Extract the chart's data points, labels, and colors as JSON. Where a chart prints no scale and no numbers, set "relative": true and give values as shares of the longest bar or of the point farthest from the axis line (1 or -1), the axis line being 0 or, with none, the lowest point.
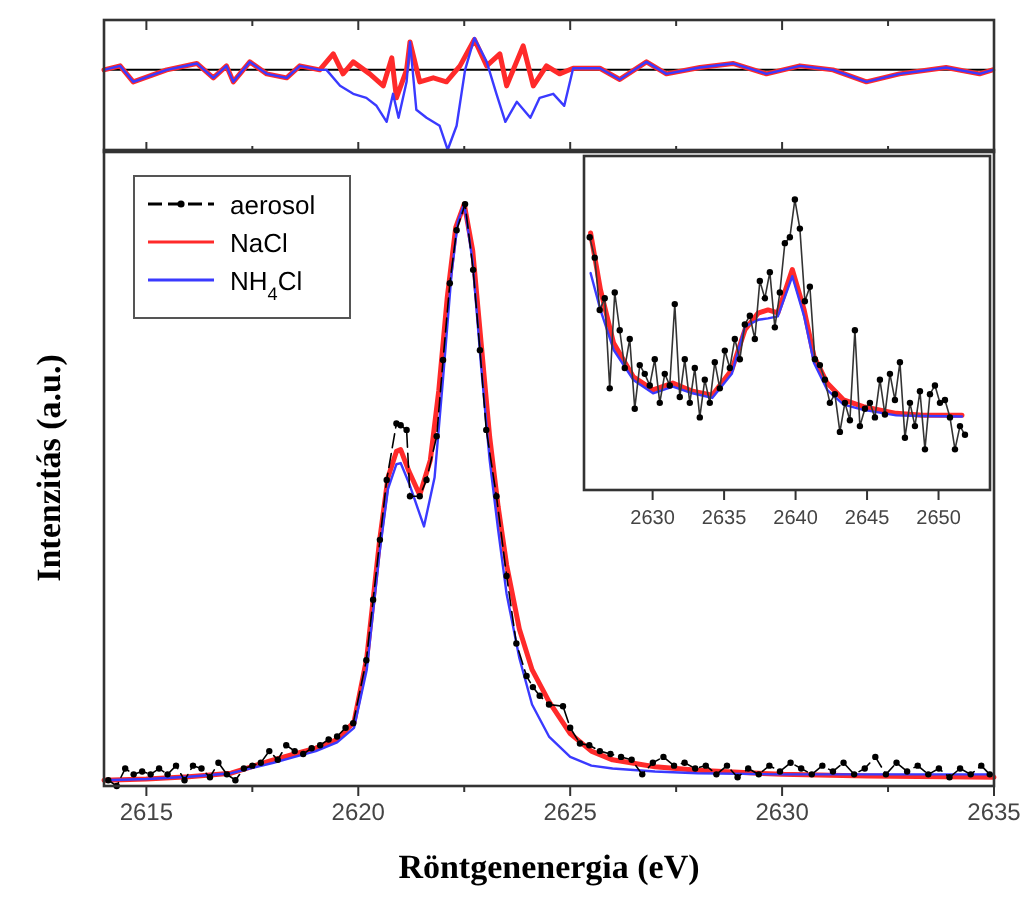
{
  "chart_data": [
    {
      "type": "line",
      "relative": true,
      "xlim": [
        2614,
        2635
      ],
      "xticks": [
        2615,
        {
          "value": 2617.5,
          "label": null
        },
        2620,
        {
          "value": 2622.5,
          "label": null
        },
        2625,
        {
          "value": 2627.5,
          "label": null
        },
        2630,
        {
          "value": 2632.5,
          "label": null
        },
        2635
      ],
      "tick_labels": false,
      "ref_lines": [
        {
          "axis": "y",
          "value": 0,
          "color": "#000000"
        }
      ],
      "series": [
        {
          "color": "#ff2a2a",
          "x": [
            2614.0,
            2614.38,
            2614.69,
            2615.48,
            2616.19,
            2616.58,
            2616.89,
            2617.05,
            2617.44,
            2617.84,
            2618.31,
            2618.62,
            2619.09,
            2619.41,
            2619.64,
            2619.88,
            2620.27,
            2620.59,
            2620.79,
            2620.9,
            2621.14,
            2621.22,
            2621.45,
            2621.77,
            2622.08,
            2622.4,
            2622.74,
            2623.03,
            2623.34,
            2623.5,
            2623.89,
            2624.13,
            2624.44,
            2624.75,
            2625.07,
            2625.7,
            2626.17,
            2626.8,
            2627.27,
            2628.06,
            2628.84,
            2629.63,
            2630.42,
            2631.2,
            2631.99,
            2632.77,
            2633.87,
            2634.66,
            2634.97
          ],
          "values": [
            0,
            0.05,
            -0.15,
            0,
            0.08,
            -0.1,
            0.05,
            -0.15,
            0.1,
            -0.05,
            -0.1,
            0.05,
            0,
            0.2,
            -0.05,
            0.1,
            -0.05,
            -0.2,
            0.15,
            -0.35,
            0,
            0.35,
            -0.15,
            -0.1,
            -0.15,
            0.05,
            0.38,
            0.05,
            0.2,
            -0.2,
            0.3,
            -0.2,
            0.05,
            -0.05,
            0.02,
            0.02,
            -0.12,
            0.1,
            -0.05,
            0.03,
            0.08,
            -0.05,
            0.05,
            0,
            -0.15,
            -0.05,
            0.03,
            -0.05,
            0
          ]
        },
        {
          "color": "#3a3aff",
          "x": [
            2614.0,
            2614.38,
            2614.69,
            2615.48,
            2616.19,
            2616.58,
            2616.89,
            2617.05,
            2617.44,
            2617.84,
            2618.31,
            2618.62,
            2619.09,
            2619.25,
            2619.57,
            2619.88,
            2620.19,
            2620.43,
            2620.67,
            2620.82,
            2620.95,
            2621.14,
            2621.22,
            2621.37,
            2621.61,
            2621.92,
            2622.11,
            2622.32,
            2622.52,
            2622.74,
            2623.03,
            2623.26,
            2623.47,
            2623.74,
            2624.06,
            2624.28,
            2624.6,
            2624.86,
            2625.07,
            2625.7,
            2626.17,
            2626.8,
            2627.27,
            2628.06,
            2628.84,
            2629.63,
            2630.42,
            2631.2,
            2631.99,
            2632.77,
            2633.87,
            2634.66,
            2634.97
          ],
          "values": [
            0,
            0.05,
            -0.15,
            0,
            0.08,
            -0.1,
            0.05,
            -0.15,
            0.1,
            -0.05,
            -0.1,
            0.05,
            0,
            0,
            -0.2,
            -0.3,
            -0.35,
            -0.45,
            -0.65,
            -0.3,
            -0.6,
            -0.15,
            0.35,
            -0.5,
            -0.6,
            -0.7,
            -1.0,
            -0.7,
            0,
            0.4,
            0.1,
            -0.3,
            -0.65,
            -0.4,
            -0.6,
            -0.35,
            -0.3,
            -0.45,
            0.02,
            0.02,
            -0.12,
            0.1,
            -0.05,
            0.03,
            0.08,
            -0.05,
            0.05,
            0,
            -0.15,
            -0.05,
            0.03,
            -0.05,
            0
          ]
        }
      ]
    },
    {
      "type": "line",
      "relative": true,
      "xlabel": "Röntgenenergia (eV)",
      "ylabel": "Intenzitás (a.u.)",
      "xlim": [
        2614,
        2635
      ],
      "xticks": [
        2615,
        {
          "value": 2617.5,
          "label": null
        },
        2620,
        {
          "value": 2622.5,
          "label": null
        },
        2625,
        {
          "value": 2627.5,
          "label": null
        },
        2630,
        {
          "value": 2632.5,
          "label": null
        },
        2635
      ],
      "tick_labels": "x",
      "legend": "top left",
      "series": [
        {
          "name": "aerosol",
          "color": "#000000",
          "marker": "circle",
          "line_style": "dashed",
          "x": [
            2614.1,
            2614.3,
            2614.5,
            2614.7,
            2614.9,
            2615.1,
            2615.3,
            2615.5,
            2615.7,
            2615.9,
            2616.1,
            2616.3,
            2616.5,
            2616.7,
            2616.9,
            2617.1,
            2617.3,
            2617.5,
            2617.7,
            2617.9,
            2618.1,
            2618.3,
            2618.5,
            2618.7,
            2618.9,
            2619.1,
            2619.3,
            2619.5,
            2619.7,
            2619.88,
            2620.19,
            2620.35,
            2620.51,
            2620.67,
            2620.9,
            2621.0,
            2621.14,
            2621.22,
            2621.45,
            2621.61,
            2621.85,
            2622.0,
            2622.16,
            2622.32,
            2622.52,
            2622.71,
            2622.87,
            2623.02,
            2623.26,
            2623.5,
            2623.73,
            2623.97,
            2624.12,
            2624.28,
            2624.5,
            2624.83,
            2625.0,
            2625.23,
            2625.45,
            2625.7,
            2625.95,
            2626.2,
            2626.45,
            2626.7,
            2626.95,
            2627.2,
            2627.45,
            2627.7,
            2627.95,
            2628.2,
            2628.45,
            2628.7,
            2628.95,
            2629.2,
            2629.45,
            2629.7,
            2629.95,
            2630.2,
            2630.45,
            2630.7,
            2630.95,
            2631.2,
            2631.45,
            2631.7,
            2631.95,
            2632.2,
            2632.45,
            2632.7,
            2632.95,
            2633.2,
            2633.45,
            2633.7,
            2633.95,
            2634.2,
            2634.45,
            2634.7,
            2634.9
          ],
          "values": [
            0.01,
            0.0,
            0.03,
            0.02,
            0.025,
            0.02,
            0.03,
            0.02,
            0.035,
            0.01,
            0.035,
            0.03,
            0.015,
            0.04,
            0.02,
            0.01,
            0.03,
            0.035,
            0.04,
            0.06,
            0.045,
            0.07,
            0.06,
            0.055,
            0.065,
            0.07,
            0.08,
            0.085,
            0.1,
            0.108,
            0.216,
            0.32,
            0.423,
            0.526,
            0.623,
            0.62,
            0.612,
            0.498,
            0.498,
            0.526,
            0.601,
            0.732,
            0.864,
            0.955,
            1.0,
            0.887,
            0.749,
            0.612,
            0.498,
            0.361,
            0.245,
            0.189,
            0.17,
            0.155,
            0.14,
            0.137,
            0.1,
            0.073,
            0.07,
            0.06,
            0.055,
            0.05,
            0.045,
            0.02,
            0.04,
            0.05,
            0.035,
            0.04,
            0.03,
            0.035,
            0.02,
            0.035,
            0.015,
            0.03,
            0.02,
            0.035,
            0.025,
            0.04,
            0.03,
            0.02,
            0.035,
            0.025,
            0.04,
            0.02,
            0.03,
            0.05,
            0.02,
            0.04,
            0.025,
            0.035,
            0.02,
            0.03,
            0.015,
            0.03,
            0.02,
            0.035,
            0.02
          ]
        },
        {
          "name": "NaCl",
          "color": "#ff2a2a",
          "x": [
            2614,
            2615,
            2616,
            2617,
            2618,
            2618.5,
            2619,
            2619.5,
            2619.9,
            2620.2,
            2620.5,
            2620.7,
            2620.9,
            2621.0,
            2621.2,
            2621.45,
            2621.7,
            2621.9,
            2622.1,
            2622.3,
            2622.5,
            2622.7,
            2622.9,
            2623.1,
            2623.3,
            2623.5,
            2623.8,
            2624.1,
            2624.5,
            2625,
            2625.5,
            2626,
            2627,
            2628,
            2630,
            2632,
            2635
          ],
          "values": [
            0.01,
            0.012,
            0.016,
            0.022,
            0.045,
            0.055,
            0.065,
            0.08,
            0.11,
            0.22,
            0.42,
            0.53,
            0.575,
            0.578,
            0.54,
            0.5,
            0.56,
            0.68,
            0.84,
            0.96,
            1.0,
            0.92,
            0.76,
            0.6,
            0.48,
            0.38,
            0.27,
            0.2,
            0.145,
            0.09,
            0.06,
            0.045,
            0.033,
            0.027,
            0.02,
            0.017,
            0.015
          ]
        },
        {
          "name": "NH$_{4}$Cl",
          "color": "#3a3aff",
          "x": [
            2614,
            2615,
            2616,
            2617,
            2618,
            2618.5,
            2619,
            2619.5,
            2619.9,
            2620.2,
            2620.5,
            2620.7,
            2620.9,
            2621.0,
            2621.2,
            2621.55,
            2621.8,
            2622.0,
            2622.2,
            2622.35,
            2622.5,
            2622.7,
            2622.9,
            2623.1,
            2623.3,
            2623.5,
            2623.8,
            2624.1,
            2624.5,
            2625,
            2625.5,
            2626,
            2627,
            2628,
            2630,
            2632,
            2635
          ],
          "values": [
            0.01,
            0.012,
            0.016,
            0.022,
            0.04,
            0.05,
            0.06,
            0.075,
            0.1,
            0.2,
            0.4,
            0.51,
            0.553,
            0.555,
            0.52,
            0.446,
            0.53,
            0.7,
            0.88,
            0.97,
            1.0,
            0.9,
            0.72,
            0.56,
            0.44,
            0.33,
            0.22,
            0.14,
            0.085,
            0.05,
            0.035,
            0.03,
            0.025,
            0.022,
            0.02,
            0.02,
            0.02
          ]
        }
      ]
    },
    {
      "type": "line",
      "relative": true,
      "xlim": [
        2625.2,
        2653.6
      ],
      "xticks": [
        2630,
        2635,
        2640,
        2645,
        2650
      ],
      "tick_labels": "x",
      "series": [
        {
          "color": "#333333",
          "marker": "circle",
          "x": [
            2625.6,
            2625.95,
            2626.3,
            2626.65,
            2627.0,
            2627.35,
            2627.7,
            2628.05,
            2628.4,
            2628.75,
            2629.1,
            2629.45,
            2629.8,
            2630.15,
            2630.5,
            2630.85,
            2631.2,
            2631.55,
            2631.9,
            2632.25,
            2632.6,
            2632.95,
            2633.3,
            2633.65,
            2634.0,
            2634.35,
            2634.7,
            2635.05,
            2635.4,
            2635.75,
            2636.1,
            2636.45,
            2636.8,
            2637.15,
            2637.5,
            2637.85,
            2638.2,
            2638.55,
            2638.9,
            2639.25,
            2639.6,
            2639.95,
            2640.3,
            2640.65,
            2641.0,
            2641.35,
            2641.7,
            2642.05,
            2642.4,
            2642.75,
            2643.1,
            2643.45,
            2643.8,
            2644.15,
            2644.5,
            2644.85,
            2645.2,
            2645.55,
            2645.9,
            2646.25,
            2646.6,
            2646.95,
            2647.3,
            2647.65,
            2648.0,
            2648.35,
            2648.7,
            2649.05,
            2649.4,
            2649.75,
            2650.1,
            2650.45,
            2650.8,
            2651.15,
            2651.5,
            2651.85
          ],
          "values": [
            0.87,
            0.8,
            0.62,
            0.66,
            0.35,
            0.68,
            0.55,
            0.42,
            0.52,
            0.28,
            0.43,
            0.4,
            0.36,
            0.45,
            0.3,
            0.4,
            0.36,
            0.64,
            0.32,
            0.45,
            0.3,
            0.42,
            0.25,
            0.38,
            0.3,
            0.44,
            0.35,
            0.48,
            0.42,
            0.52,
            0.45,
            0.57,
            0.6,
            0.52,
            0.72,
            0.66,
            0.75,
            0.56,
            0.68,
            0.85,
            0.87,
            1.0,
            0.9,
            0.65,
            0.7,
            0.45,
            0.43,
            0.38,
            0.3,
            0.33,
            0.2,
            0.3,
            0.24,
            0.55,
            0.22,
            0.28,
            0.3,
            0.25,
            0.38,
            0.26,
            0.4,
            0.31,
            0.44,
            0.18,
            0.3,
            0.22,
            0.34,
            0.14,
            0.33,
            0.36,
            0.3,
            0.31,
            0.25,
            0.14,
            0.22,
            0.19
          ]
        },
        {
          "color": "#ff2a2a",
          "x": [
            2625.66,
            2626.35,
            2627.27,
            2628.65,
            2630.03,
            2631.41,
            2632.79,
            2634.17,
            2635.54,
            2636.46,
            2637.38,
            2638.07,
            2638.76,
            2639.77,
            2640.6,
            2641.29,
            2642.21,
            2643.36,
            2644.74,
            2647.04,
            2648.88,
            2651.64
          ],
          "values": [
            0.885,
            0.69,
            0.506,
            0.39,
            0.345,
            0.368,
            0.34,
            0.326,
            0.414,
            0.552,
            0.609,
            0.62,
            0.61,
            0.759,
            0.62,
            0.46,
            0.368,
            0.31,
            0.287,
            0.264,
            0.257,
            0.257
          ]
        },
        {
          "color": "#3a3aff",
          "x": [
            2625.66,
            2626.35,
            2627.27,
            2628.65,
            2630.03,
            2631.41,
            2632.79,
            2634.17,
            2635.54,
            2636.46,
            2637.38,
            2638.07,
            2638.76,
            2639.77,
            2640.6,
            2641.29,
            2642.21,
            2643.36,
            2644.74,
            2647.04,
            2648.88,
            2651.64
          ],
          "values": [
            0.747,
            0.62,
            0.483,
            0.379,
            0.333,
            0.356,
            0.333,
            0.317,
            0.4,
            0.563,
            0.586,
            0.591,
            0.598,
            0.736,
            0.598,
            0.437,
            0.345,
            0.294,
            0.276,
            0.257,
            0.255,
            0.253
          ]
        }
      ]
    }
  ]
}
